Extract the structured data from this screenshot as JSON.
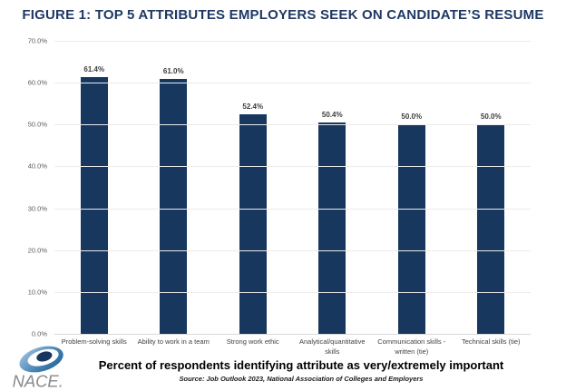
{
  "title": "FIGURE 1: TOP 5 ATTRIBUTES EMPLOYERS SEEK ON CANDIDATE’S RESUME",
  "chart_data": {
    "type": "bar",
    "title": "FIGURE 1: TOP 5 ATTRIBUTES EMPLOYERS SEEK ON CANDIDATE’S RESUME",
    "categories": [
      "Problem-solving skills",
      "Ability to work in a team",
      "Strong work ethic",
      "Analytical/quantitative skills",
      "Communication skills -\nwritten (tie)",
      "Technical skills (tie)"
    ],
    "values": [
      61.4,
      61.0,
      52.4,
      50.4,
      50.0,
      50.0
    ],
    "value_labels": [
      "61.4%",
      "61.0%",
      "52.4%",
      "50.4%",
      "50.0%",
      "50.0%"
    ],
    "xlabel": "Percent of respondents identifying attribute as very/extremely important",
    "ylabel": "",
    "ylim": [
      0,
      70
    ],
    "yticks_top_to_bottom": [
      "70.0%",
      "60.0%",
      "50.0%",
      "40.0%",
      "30.0%",
      "20.0%",
      "10.0%",
      "0.0%"
    ],
    "grid": true,
    "legend": "none",
    "bar_color": "#17375E"
  },
  "footer": {
    "caption": "Percent of respondents identifying attribute as very/extremely important",
    "source": "Source: Job Outlook 2023, National Association of Colleges and Employers"
  },
  "logo": {
    "text": "NACE.",
    "icon": "nace-swirl-icon",
    "swirl_dark": "#17375E",
    "swirl_mid": "#2f6da5",
    "swirl_light": "#a9c9e2",
    "text_color": "#87898c"
  },
  "colors": {
    "title": "#1F3864",
    "bar": "#17375E",
    "gridline": "#ebebeb",
    "tick_text": "#595959"
  }
}
